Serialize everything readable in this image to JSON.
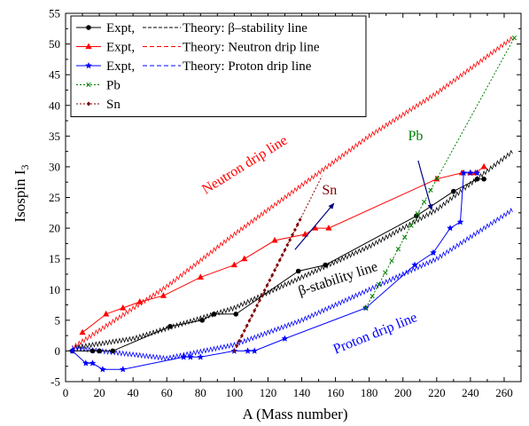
{
  "chart_data": {
    "type": "line",
    "xlabel": "A (Mass number)",
    "ylabel": "Isospin I",
    "ylabel_sub": "3",
    "xlim": [
      0,
      270
    ],
    "ylim": [
      -5,
      55
    ],
    "xticks": [
      0,
      20,
      40,
      60,
      80,
      100,
      120,
      140,
      160,
      180,
      200,
      220,
      240,
      260
    ],
    "yticks": [
      -5,
      0,
      5,
      10,
      15,
      20,
      25,
      30,
      35,
      40,
      45,
      50,
      55
    ],
    "legend_position": "top-left",
    "legend": [
      {
        "expt": "Expt,",
        "theory": "Theory: β–stability line",
        "color": "#000000",
        "marker": "circle",
        "dash": "4,2"
      },
      {
        "expt": "Expt,",
        "theory": "Theory: Neutron drip line",
        "color": "#ff0000",
        "marker": "triangle",
        "dash": "5,3"
      },
      {
        "expt": "Expt,",
        "theory": "Theory: Proton drip line",
        "color": "#0000ff",
        "marker": "star",
        "dash": "5,3"
      },
      {
        "label": "Pb",
        "color": "#008000",
        "marker": "cross",
        "dash": "2,2"
      },
      {
        "label": "Sn",
        "color": "#800000",
        "marker": "diamond",
        "dash": "2,2"
      }
    ],
    "series": [
      {
        "name": "Expt, β–stability line",
        "color": "#000000",
        "marker": "circle",
        "x": [
          4,
          16,
          20,
          28,
          62,
          81,
          88,
          101,
          138,
          154,
          208,
          230,
          244,
          248
        ],
        "y": [
          0,
          0,
          0,
          0,
          4,
          5,
          6,
          6,
          13,
          14,
          22,
          26,
          28,
          28
        ]
      },
      {
        "name": "Expt, Neutron drip line",
        "color": "#ff0000",
        "marker": "triangle",
        "x": [
          10,
          24,
          34,
          44,
          58,
          80,
          100,
          106,
          124,
          142,
          148,
          156,
          220,
          235,
          240,
          243,
          248
        ],
        "y": [
          3,
          6,
          7,
          8,
          9,
          12,
          14,
          15,
          18,
          19,
          20,
          20,
          28,
          29,
          29,
          29,
          30
        ]
      },
      {
        "name": "Expt, Proton drip line",
        "color": "#0000ff",
        "marker": "star",
        "x": [
          4,
          12,
          16,
          22,
          34,
          70,
          74,
          80,
          100,
          108,
          112,
          130,
          178,
          207,
          218,
          228,
          234,
          236,
          240,
          244
        ],
        "y": [
          0,
          -2,
          -2,
          -3,
          -3,
          -1,
          -1,
          -1,
          0,
          0,
          0,
          2,
          7,
          14,
          16,
          20,
          21,
          29,
          29,
          29
        ]
      },
      {
        "name": "Pb",
        "color": "#008000",
        "marker": "cross",
        "x_start": 178,
        "x_end": 266,
        "y_start": 7,
        "y_end": 51
      },
      {
        "name": "Sn",
        "color": "#800000",
        "marker": "diamond",
        "x_start": 100,
        "x_end": 152,
        "y_start": 0,
        "y_end": 28.5
      }
    ],
    "theory_lines": [
      {
        "name": "Theory: β–stability line",
        "color": "#000000",
        "x": [
          4,
          40,
          100,
          140,
          180,
          220,
          265
        ],
        "y": [
          0.5,
          2,
          7,
          12,
          17,
          23,
          32.5
        ]
      },
      {
        "name": "Theory: Neutron drip line",
        "color": "#ff0000",
        "x": [
          4,
          60,
          100,
          140,
          180,
          220,
          265
        ],
        "y": [
          0.5,
          10.5,
          19,
          27,
          35,
          42,
          51
        ]
      },
      {
        "name": "Theory: Proton drip line",
        "color": "#0000ff",
        "x": [
          4,
          60,
          100,
          140,
          180,
          220,
          265
        ],
        "y": [
          0.5,
          -1.2,
          1,
          5,
          10,
          15,
          23
        ]
      }
    ],
    "annotations": [
      {
        "text": "Neutron drip line",
        "color": "#ff0000"
      },
      {
        "text": "β-stability line",
        "color": "#000000"
      },
      {
        "text": "Proton drip line",
        "color": "#0000ff"
      },
      {
        "text": "Pb",
        "color": "#008000"
      },
      {
        "text": "Sn",
        "color": "#800000"
      }
    ]
  }
}
